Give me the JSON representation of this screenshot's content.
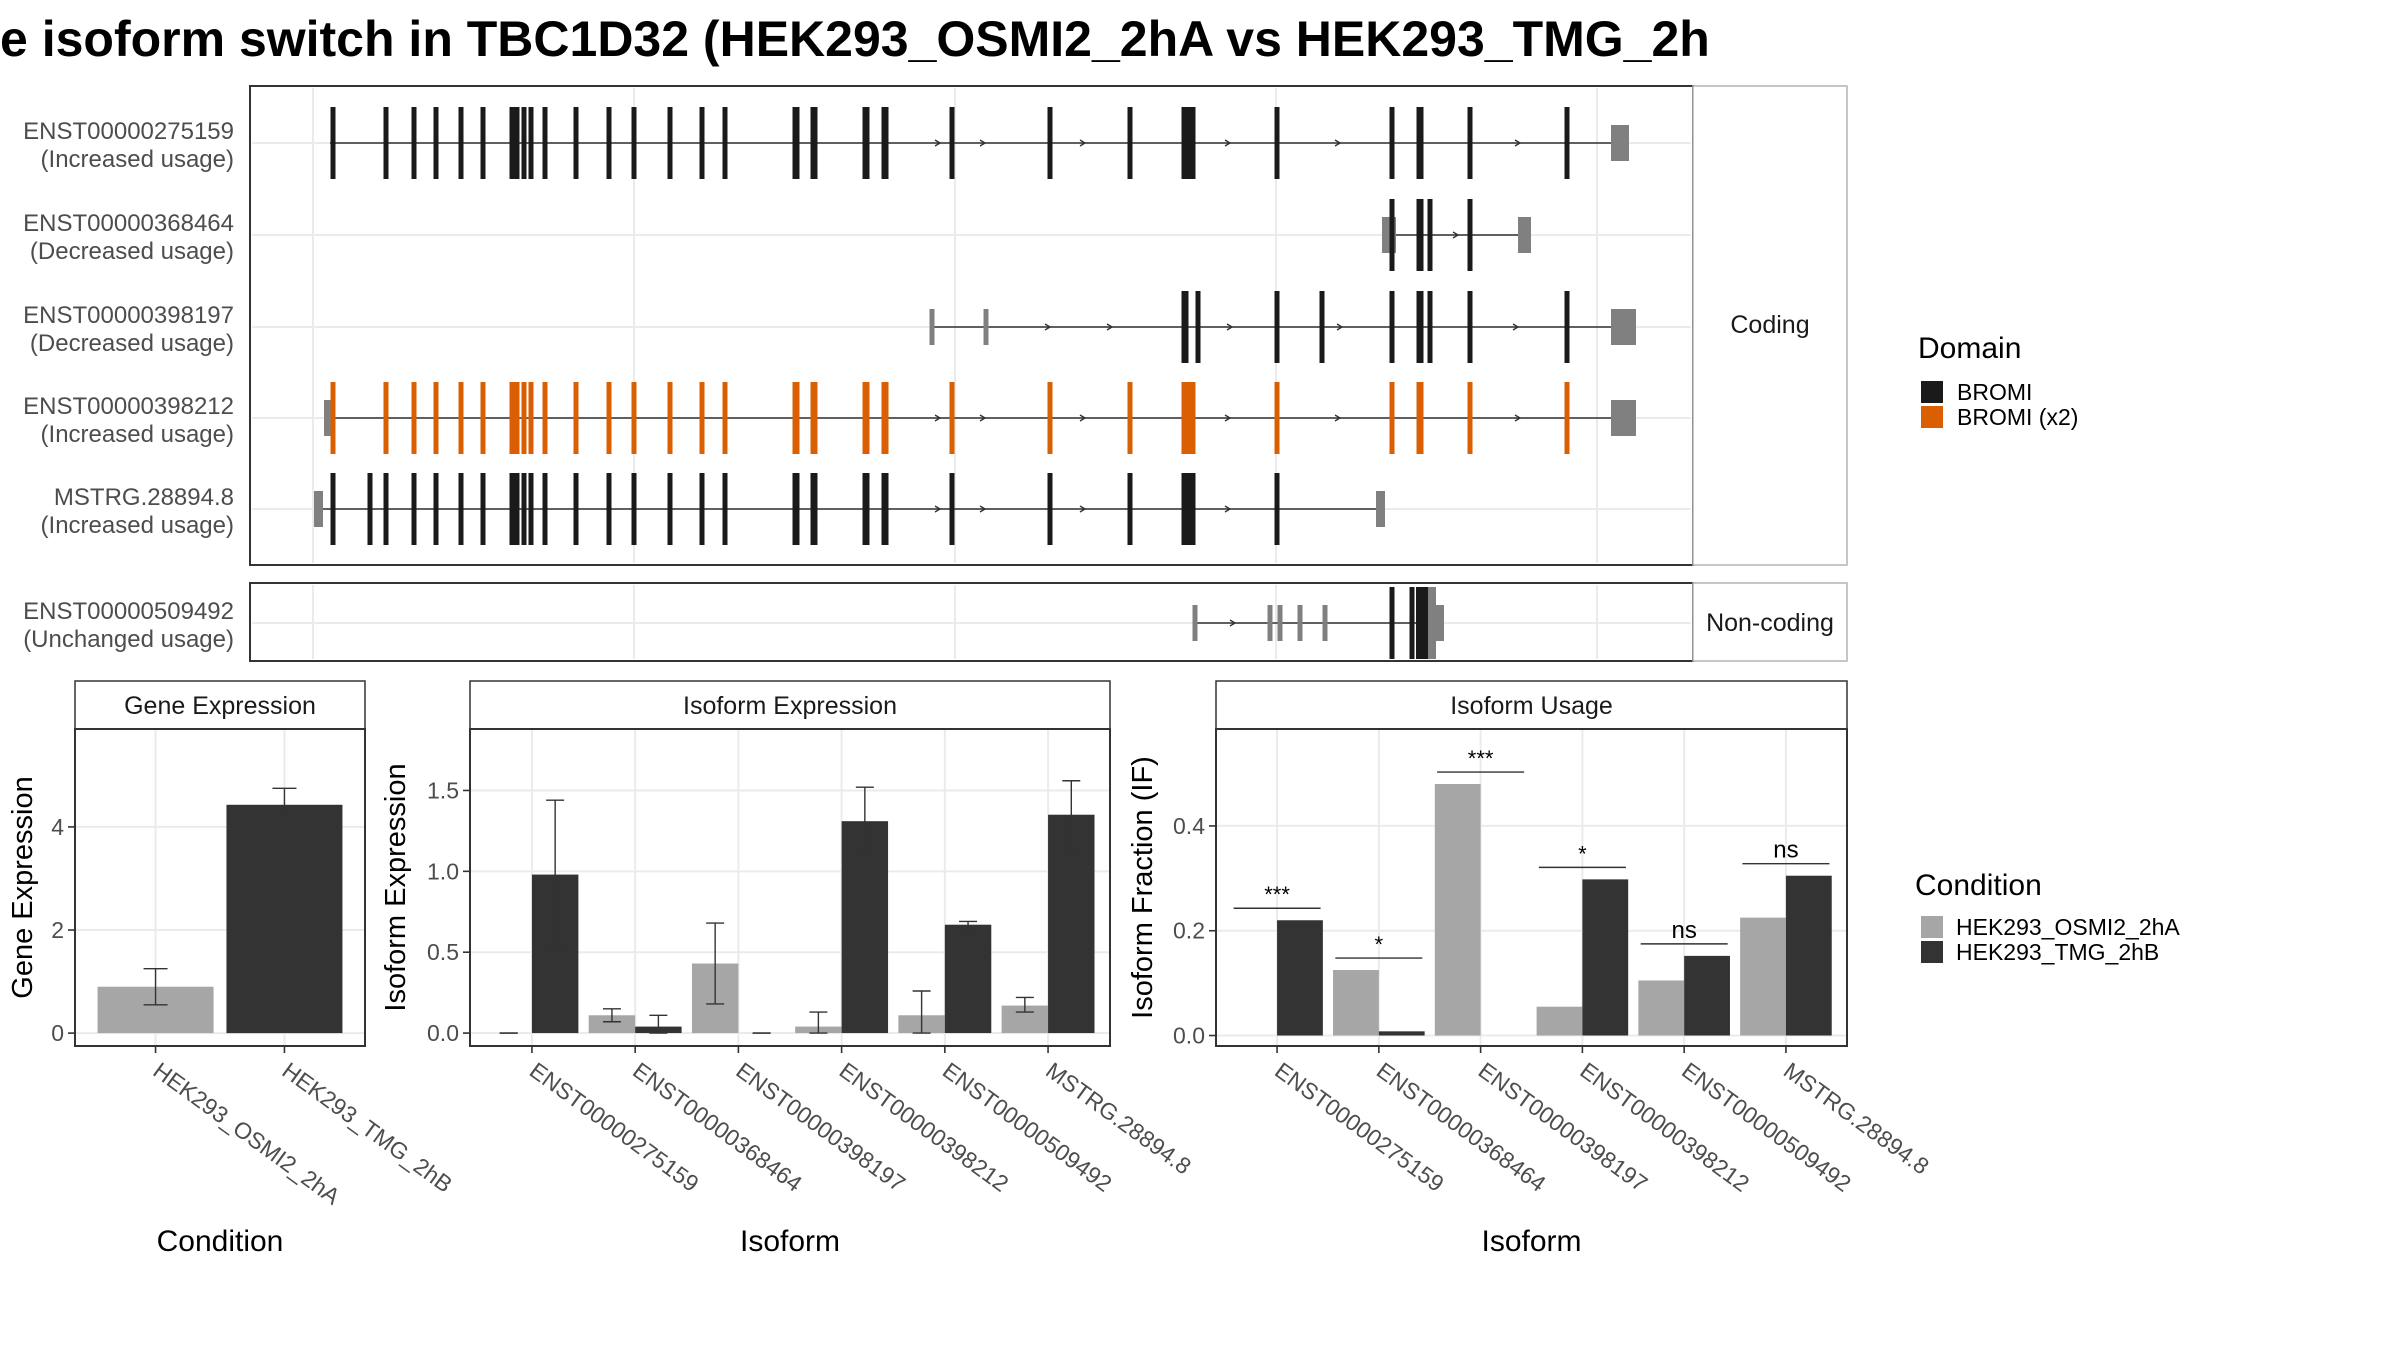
{
  "title": "e isoform switch in TBC1D32 (HEK293_OSMI2_2hA vs HEK293_TMG_2h",
  "colors": {
    "domain": "#1a1a1a",
    "domain_x2": "#d95f02",
    "utr": "#808080",
    "condition_a": "#a6a6a6",
    "condition_b": "#333333"
  },
  "transcripts_panel": {
    "coding_strip_label": "Coding",
    "noncoding_strip_label": "Non-coding",
    "transcripts": [
      {
        "id": "ENST00000275159",
        "usage": "(Increased usage)",
        "group": "coding",
        "domain": "BROMI"
      },
      {
        "id": "ENST00000368464",
        "usage": "(Decreased usage)",
        "group": "coding",
        "domain": "BROMI"
      },
      {
        "id": "ENST00000398197",
        "usage": "(Decreased usage)",
        "group": "coding",
        "domain": "BROMI"
      },
      {
        "id": "ENST00000398212",
        "usage": "(Increased usage)",
        "group": "coding",
        "domain": "BROMI (x2)"
      },
      {
        "id": "MSTRG.28894.8",
        "usage": "(Increased usage)",
        "group": "coding",
        "domain": "BROMI"
      },
      {
        "id": "ENST00000509492",
        "usage": "(Unchanged usage)",
        "group": "non-coding",
        "domain": ""
      }
    ]
  },
  "legends": {
    "domain_title": "Domain",
    "domain_items": [
      "BROMI",
      "BROMI (x2)"
    ],
    "condition_title": "Condition",
    "condition_items": [
      "HEK293_OSMI2_2hA",
      "HEK293_TMG_2hB"
    ]
  },
  "chart_data": [
    {
      "type": "bar",
      "title": "Gene Expression",
      "xlabel": "Condition",
      "ylabel": "Gene Expression",
      "categories": [
        "HEK293_OSMI2_2hA",
        "HEK293_TMG_2hB"
      ],
      "values": [
        0.9,
        4.43
      ],
      "errors": [
        [
          0.55,
          1.25
        ],
        [
          4.12,
          4.75
        ]
      ],
      "yticks": [
        "0",
        "2",
        "4"
      ],
      "ylim": [
        -0.25,
        5.9
      ],
      "grid": true
    },
    {
      "type": "bar",
      "title": "Isoform Expression",
      "xlabel": "Isoform",
      "ylabel": "Isoform Expression",
      "categories": [
        "ENST00000275159",
        "ENST00000368464",
        "ENST00000398197",
        "ENST00000398212",
        "ENST00000509492",
        "MSTRG.28894.8"
      ],
      "series": [
        {
          "name": "HEK293_OSMI2_2hA",
          "values": [
            0.0,
            0.11,
            0.43,
            0.04,
            0.11,
            0.17
          ],
          "errors": [
            [
              0.0,
              0.0
            ],
            [
              0.07,
              0.15
            ],
            [
              0.18,
              0.68
            ],
            [
              0.0,
              0.13
            ],
            [
              0.0,
              0.26
            ],
            [
              0.13,
              0.22
            ]
          ]
        },
        {
          "name": "HEK293_TMG_2hB",
          "values": [
            0.98,
            0.04,
            0.0,
            1.31,
            0.67,
            1.35
          ],
          "errors": [
            [
              0.52,
              1.44
            ],
            [
              0.0,
              0.11
            ],
            [
              0.0,
              0.0
            ],
            [
              1.1,
              1.52
            ],
            [
              0.65,
              0.69
            ],
            [
              1.14,
              1.56
            ]
          ]
        }
      ],
      "yticks": [
        "0.0",
        "0.5",
        "1.0",
        "1.5"
      ],
      "ylim": [
        -0.08,
        1.88
      ],
      "grid": true
    },
    {
      "type": "bar",
      "title": "Isoform Usage",
      "xlabel": "Isoform",
      "ylabel": "Isoform Fraction (IF)",
      "categories": [
        "ENST00000275159",
        "ENST00000368464",
        "ENST00000398197",
        "ENST00000398212",
        "ENST00000509492",
        "MSTRG.28894.8"
      ],
      "series": [
        {
          "name": "HEK293_OSMI2_2hA",
          "values": [
            0.0,
            0.125,
            0.48,
            0.055,
            0.105,
            0.225
          ]
        },
        {
          "name": "HEK293_TMG_2hB",
          "values": [
            0.22,
            0.008,
            0.0,
            0.298,
            0.152,
            0.305
          ]
        }
      ],
      "significance": [
        "***",
        "*",
        "***",
        "*",
        "ns",
        "ns"
      ],
      "yticks": [
        "0.0",
        "0.2",
        "0.4"
      ],
      "ylim": [
        -0.02,
        0.585
      ],
      "grid": true
    }
  ]
}
